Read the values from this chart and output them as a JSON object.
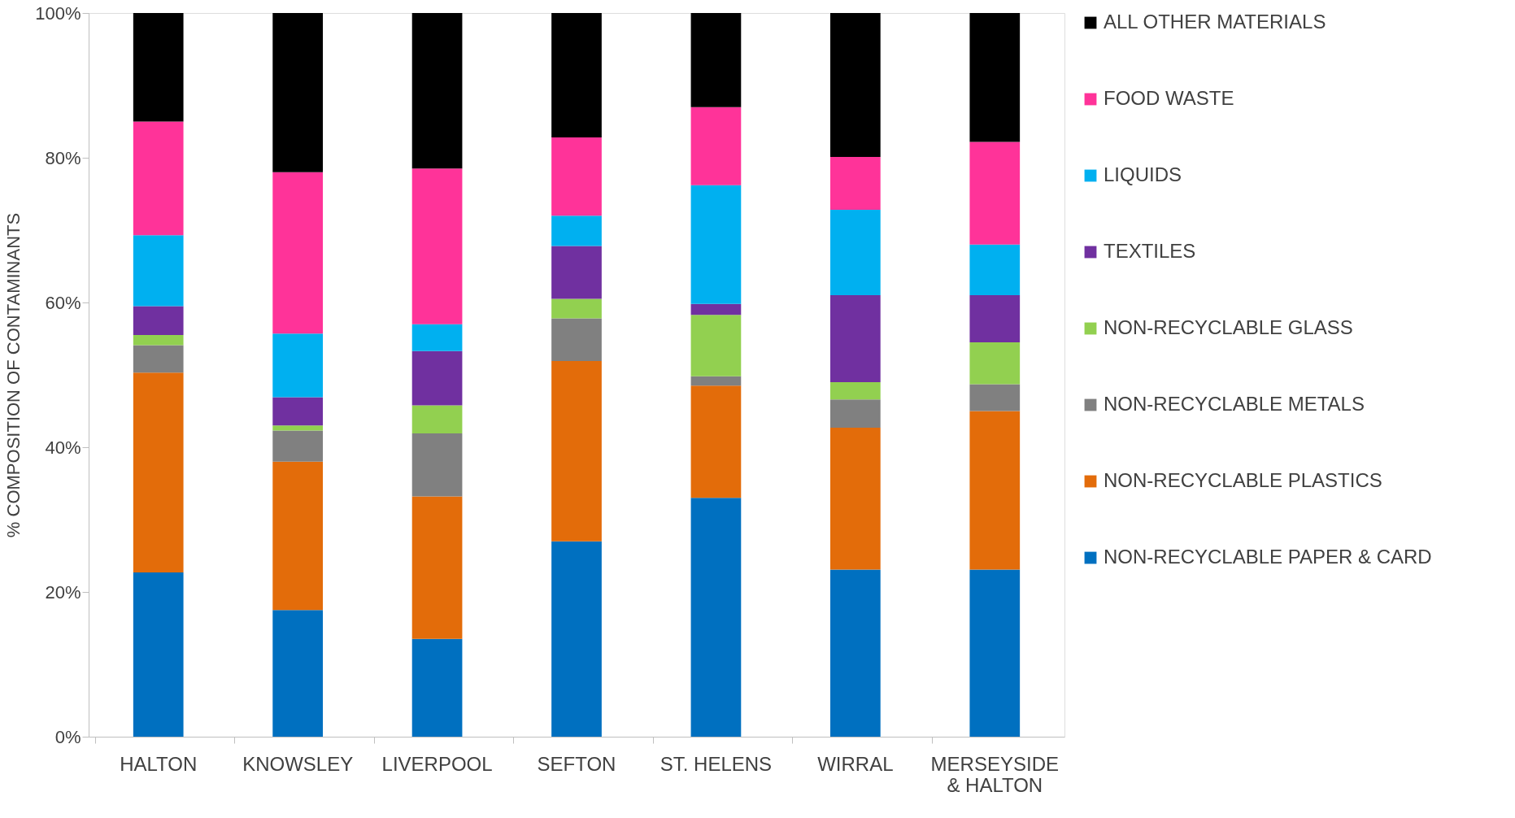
{
  "chart_data": {
    "type": "bar",
    "stacked": true,
    "ylabel": "% COMPOSITION OF CONTAMINANTS",
    "categories": [
      "HALTON",
      "KNOWSLEY",
      "LIVERPOOL",
      "SEFTON",
      "ST. HELENS",
      "WIRRAL",
      "MERSEYSIDE & HALTON"
    ],
    "series": [
      {
        "name": "NON-RECYCLABLE PAPER & CARD",
        "color": "#0070c0",
        "values": [
          22.7,
          17.5,
          13.5,
          27.0,
          33.0,
          23.1,
          23.1
        ]
      },
      {
        "name": "NON-RECYCLABLE PLASTICS",
        "color": "#e36c0a",
        "values": [
          27.6,
          20.5,
          19.7,
          24.9,
          15.5,
          19.6,
          21.9
        ]
      },
      {
        "name": "NON-RECYCLABLE METALS",
        "color": "#808080",
        "values": [
          3.8,
          4.3,
          8.7,
          5.9,
          1.3,
          3.9,
          3.7
        ]
      },
      {
        "name": "NON-RECYCLABLE GLASS",
        "color": "#92d050",
        "values": [
          1.4,
          0.7,
          3.9,
          2.7,
          8.5,
          2.4,
          5.8
        ]
      },
      {
        "name": "TEXTILES",
        "color": "#7030a0",
        "values": [
          4.0,
          3.9,
          7.5,
          7.3,
          1.5,
          12.0,
          6.5
        ]
      },
      {
        "name": "LIQUIDS",
        "color": "#00b0f0",
        "values": [
          9.8,
          8.8,
          3.7,
          4.2,
          16.4,
          11.8,
          7.0
        ]
      },
      {
        "name": "FOOD WASTE",
        "color": "#ff3399",
        "values": [
          15.7,
          22.3,
          21.5,
          10.8,
          10.8,
          7.3,
          14.2
        ]
      },
      {
        "name": "ALL OTHER MATERIALS",
        "color": "#000000",
        "values": [
          15.0,
          22.0,
          21.5,
          17.2,
          13.0,
          19.9,
          17.8
        ]
      }
    ],
    "ylim": [
      0,
      100
    ],
    "yticks": [
      {
        "value": 0,
        "label": "0%"
      },
      {
        "value": 20,
        "label": "20%"
      },
      {
        "value": 40,
        "label": "40%"
      },
      {
        "value": 60,
        "label": "60%"
      },
      {
        "value": 80,
        "label": "80%"
      },
      {
        "value": 100,
        "label": "100%"
      }
    ],
    "grid": false,
    "legend": "right"
  }
}
